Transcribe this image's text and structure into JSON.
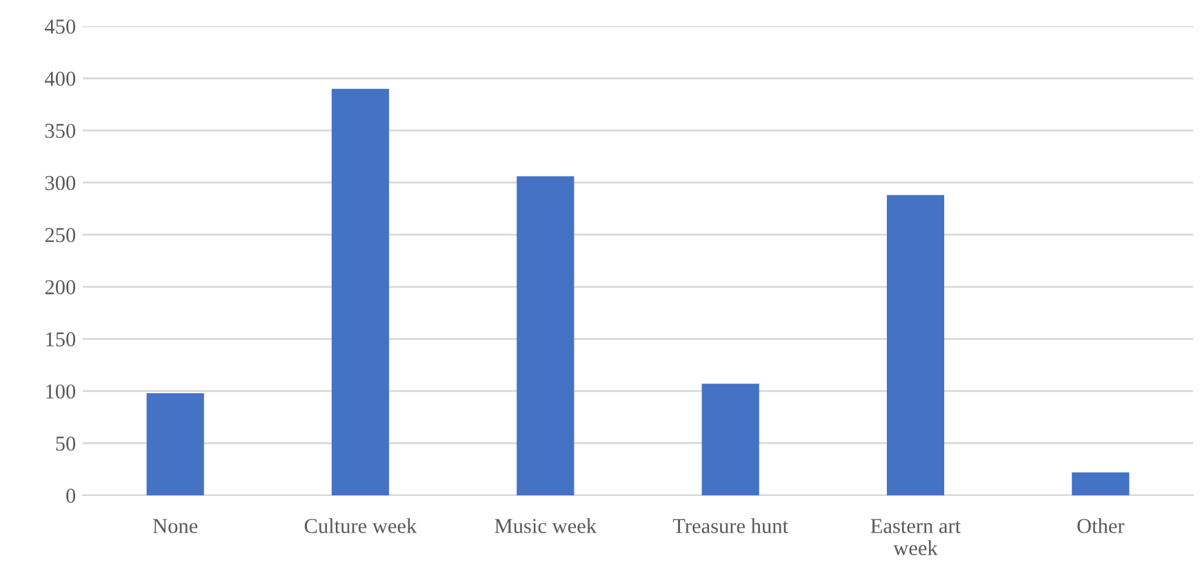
{
  "chart_data": {
    "type": "bar",
    "categories": [
      "None",
      "Culture week",
      "Music week",
      "Treasure hunt",
      "Eastern art week",
      "Other"
    ],
    "values": [
      98,
      390,
      306,
      107,
      288,
      22
    ],
    "color": "#4472c4",
    "ylim": [
      0,
      450
    ],
    "yticks": [
      0,
      50,
      100,
      150,
      200,
      250,
      300,
      350,
      400,
      450
    ],
    "grid": "y",
    "legend": false
  }
}
